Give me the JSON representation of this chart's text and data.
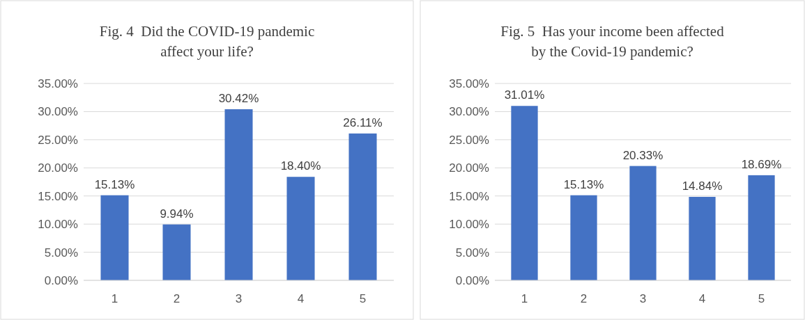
{
  "chart_data": [
    {
      "type": "bar",
      "title": "Fig. 4  Did the COVID-19 pandemic\naffect your life?",
      "categories": [
        "1",
        "2",
        "3",
        "4",
        "5"
      ],
      "values": [
        15.13,
        9.94,
        30.42,
        18.4,
        26.11
      ],
      "value_labels": [
        "15.13%",
        "9.94%",
        "30.42%",
        "18.40%",
        "26.11%"
      ],
      "color": "#4472c4",
      "ylim": [
        0,
        35
      ],
      "yticks": [
        {
          "value": 0,
          "label": "0.00%"
        },
        {
          "value": 5,
          "label": "5.00%"
        },
        {
          "value": 10,
          "label": "10.00%"
        },
        {
          "value": 15,
          "label": "15.00%"
        },
        {
          "value": 20,
          "label": "20.00%"
        },
        {
          "value": 25,
          "label": "25.00%"
        },
        {
          "value": 30,
          "label": "30.00%"
        },
        {
          "value": 35,
          "label": "35.00%"
        }
      ],
      "grid": "y"
    },
    {
      "type": "bar",
      "title": "Fig. 5  Has your income been affected\nby the Covid-19 pandemic?",
      "categories": [
        "1",
        "2",
        "3",
        "4",
        "5"
      ],
      "values": [
        31.01,
        15.13,
        20.33,
        14.84,
        18.69
      ],
      "value_labels": [
        "31.01%",
        "15.13%",
        "20.33%",
        "14.84%",
        "18.69%"
      ],
      "color": "#4472c4",
      "ylim": [
        0,
        35
      ],
      "yticks": [
        {
          "value": 0,
          "label": "0.00%"
        },
        {
          "value": 5,
          "label": "5.00%"
        },
        {
          "value": 10,
          "label": "10.00%"
        },
        {
          "value": 15,
          "label": "15.00%"
        },
        {
          "value": 20,
          "label": "20.00%"
        },
        {
          "value": 25,
          "label": "25.00%"
        },
        {
          "value": 30,
          "label": "30.00%"
        },
        {
          "value": 35,
          "label": "35.00%"
        }
      ],
      "grid": "y"
    }
  ]
}
